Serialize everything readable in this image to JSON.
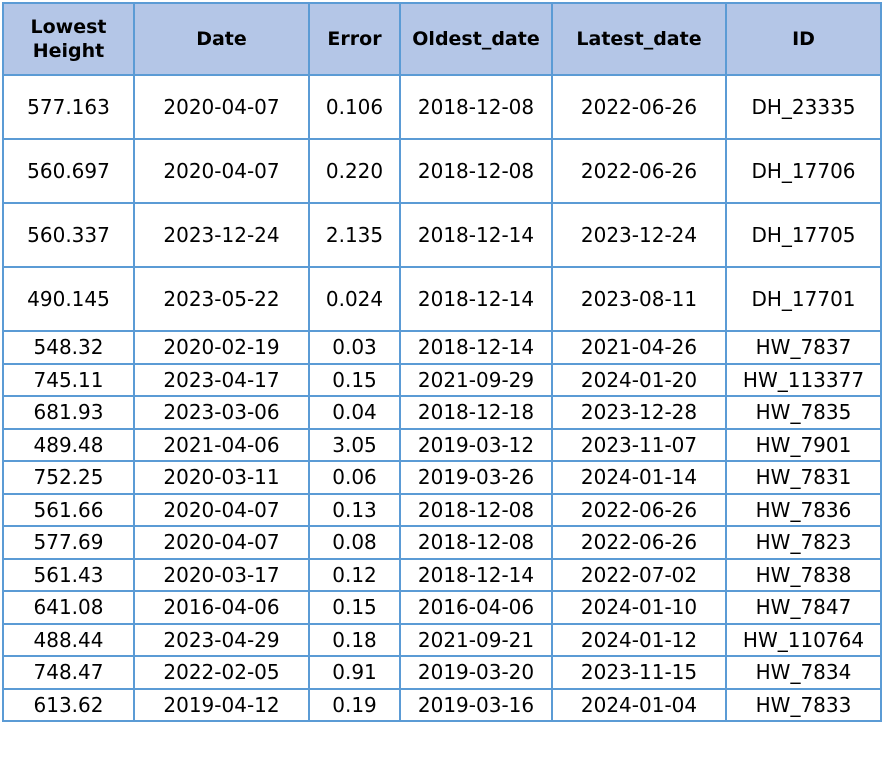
{
  "table": {
    "headers": [
      "Lowest Height",
      "Date",
      "Error",
      "Oldest_date",
      "Latest_date",
      "ID"
    ],
    "rows": [
      [
        "577.163",
        "2020-04-07",
        "0.106",
        "2018-12-08",
        "2022-06-26",
        "DH_23335"
      ],
      [
        "560.697",
        "2020-04-07",
        "0.220",
        "2018-12-08",
        "2022-06-26",
        "DH_17706"
      ],
      [
        "560.337",
        "2023-12-24",
        "2.135",
        "2018-12-14",
        "2023-12-24",
        "DH_17705"
      ],
      [
        "490.145",
        "2023-05-22",
        "0.024",
        "2018-12-14",
        "2023-08-11",
        "DH_17701"
      ],
      [
        "548.32",
        "2020-02-19",
        "0.03",
        "2018-12-14",
        "2021-04-26",
        "HW_7837"
      ],
      [
        "745.11",
        "2023-04-17",
        "0.15",
        "2021-09-29",
        "2024-01-20",
        "HW_113377"
      ],
      [
        "681.93",
        "2023-03-06",
        "0.04",
        "2018-12-18",
        "2023-12-28",
        "HW_7835"
      ],
      [
        "489.48",
        "2021-04-06",
        "3.05",
        "2019-03-12",
        "2023-11-07",
        "HW_7901"
      ],
      [
        "752.25",
        "2020-03-11",
        "0.06",
        "2019-03-26",
        "2024-01-14",
        "HW_7831"
      ],
      [
        "561.66",
        "2020-04-07",
        "0.13",
        "2018-12-08",
        "2022-06-26",
        "HW_7836"
      ],
      [
        "577.69",
        "2020-04-07",
        "0.08",
        "2018-12-08",
        "2022-06-26",
        "HW_7823"
      ],
      [
        "561.43",
        "2020-03-17",
        "0.12",
        "2018-12-14",
        "2022-07-02",
        "HW_7838"
      ],
      [
        "641.08",
        "2016-04-06",
        "0.15",
        "2016-04-06",
        "2024-01-10",
        "HW_7847"
      ],
      [
        "488.44",
        "2023-04-29",
        "0.18",
        "2021-09-21",
        "2024-01-12",
        "HW_110764"
      ],
      [
        "748.47",
        "2022-02-05",
        "0.91",
        "2019-03-20",
        "2023-11-15",
        "HW_7834"
      ],
      [
        "613.62",
        "2019-04-12",
        "0.19",
        "2019-03-16",
        "2024-01-04",
        "HW_7833"
      ]
    ]
  },
  "colors": {
    "header_bg": "#b4c6e7",
    "border": "#5b9bd5",
    "cell_bg": "#ffffff"
  }
}
